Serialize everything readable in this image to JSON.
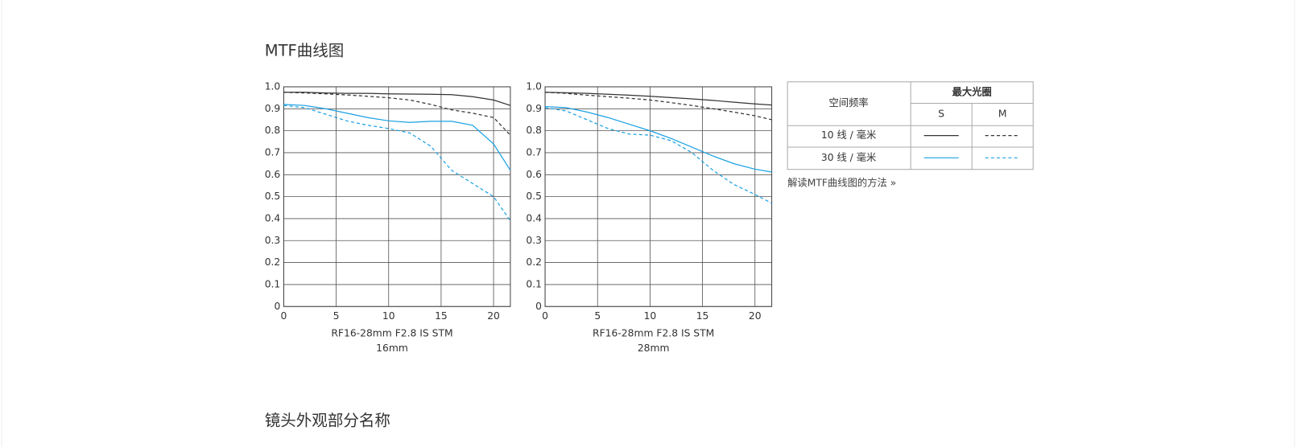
{
  "heading": "MTF曲线图",
  "chart_data": [
    {
      "type": "line",
      "title": "RF16-28mm F2.8 IS STM",
      "subtitle": "16mm",
      "x": [
        0,
        2,
        4,
        6,
        8,
        10,
        12,
        14,
        16,
        18,
        20,
        21.6
      ],
      "xlim": [
        0,
        21.6
      ],
      "xticks": [
        0,
        5,
        10,
        15,
        20
      ],
      "ylim": [
        0,
        1
      ],
      "yticks": [
        0,
        0.1,
        0.2,
        0.3,
        0.4,
        0.5,
        0.6,
        0.7,
        0.8,
        0.9,
        {
          "value": 1,
          "label": "1.0"
        }
      ],
      "grid": true,
      "series": [
        {
          "color": "#333333",
          "dashed": false,
          "values": [
            0.975,
            0.975,
            0.972,
            0.97,
            0.97,
            0.968,
            0.967,
            0.966,
            0.964,
            0.955,
            0.94,
            0.915
          ]
        },
        {
          "color": "#333333",
          "dashed": true,
          "values": [
            0.975,
            0.972,
            0.968,
            0.963,
            0.957,
            0.95,
            0.94,
            0.92,
            0.895,
            0.88,
            0.86,
            0.78
          ]
        },
        {
          "color": "#1ba1e2",
          "dashed": false,
          "values": [
            0.92,
            0.915,
            0.9,
            0.88,
            0.86,
            0.845,
            0.838,
            0.843,
            0.843,
            0.825,
            0.74,
            0.62
          ]
        },
        {
          "color": "#1ba1e2",
          "dashed": true,
          "values": [
            0.915,
            0.905,
            0.875,
            0.845,
            0.825,
            0.81,
            0.79,
            0.73,
            0.62,
            0.56,
            0.5,
            0.39
          ]
        }
      ]
    },
    {
      "type": "line",
      "title": "RF16-28mm F2.8 IS STM",
      "subtitle": "28mm",
      "x": [
        0,
        2,
        4,
        6,
        8,
        10,
        12,
        14,
        16,
        18,
        20,
        21.6
      ],
      "xlim": [
        0,
        21.6
      ],
      "xticks": [
        0,
        5,
        10,
        15,
        20
      ],
      "ylim": [
        0,
        1
      ],
      "yticks": [
        0,
        0.1,
        0.2,
        0.3,
        0.4,
        0.5,
        0.6,
        0.7,
        0.8,
        0.9,
        {
          "value": 1,
          "label": "1.0"
        }
      ],
      "grid": true,
      "series": [
        {
          "color": "#333333",
          "dashed": false,
          "values": [
            0.975,
            0.973,
            0.97,
            0.966,
            0.962,
            0.957,
            0.951,
            0.945,
            0.938,
            0.93,
            0.922,
            0.917
          ]
        },
        {
          "color": "#333333",
          "dashed": true,
          "values": [
            0.975,
            0.97,
            0.962,
            0.955,
            0.948,
            0.94,
            0.928,
            0.915,
            0.9,
            0.885,
            0.868,
            0.85
          ]
        },
        {
          "color": "#1ba1e2",
          "dashed": false,
          "values": [
            0.91,
            0.905,
            0.885,
            0.86,
            0.83,
            0.8,
            0.765,
            0.725,
            0.685,
            0.65,
            0.625,
            0.612
          ]
        },
        {
          "color": "#1ba1e2",
          "dashed": true,
          "values": [
            0.905,
            0.89,
            0.85,
            0.81,
            0.785,
            0.78,
            0.755,
            0.7,
            0.62,
            0.555,
            0.51,
            0.47
          ]
        }
      ]
    }
  ],
  "legend_table": {
    "frequency_header": "空间频率",
    "aperture_header": "最大光圈",
    "columns": [
      "S",
      "M"
    ],
    "rows": [
      "10 线 / 毫米",
      "30 线 / 毫米"
    ]
  },
  "link": "解读MTF曲线图的方法 »",
  "next_heading": "镜头外观部分名称"
}
